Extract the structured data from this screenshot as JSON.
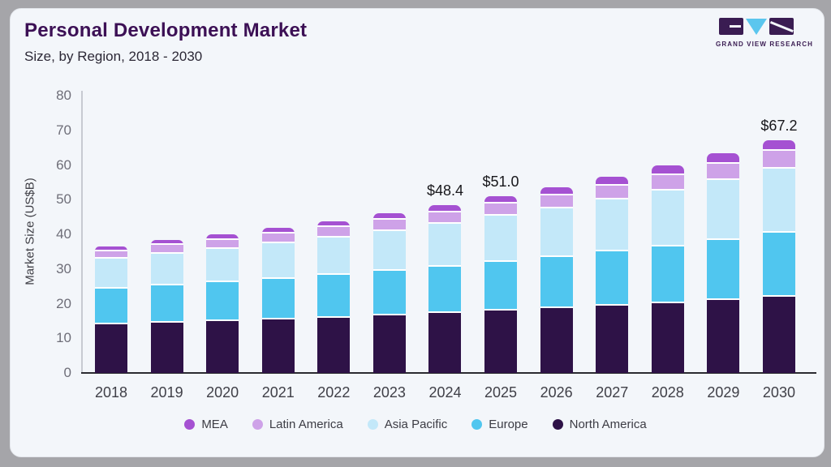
{
  "header": {
    "title": "Personal Development Market",
    "subtitle": "Size, by Region, 2018 - 2030"
  },
  "logo": {
    "name": "grand-view-research-logo",
    "text": "GRAND VIEW RESEARCH",
    "block_color": "#3a1c52",
    "triangle_color": "#5bc6ee"
  },
  "chart_data": {
    "type": "bar",
    "stacked": true,
    "title": "Personal Development Market Size, by Region, 2018 - 2030",
    "xlabel": "",
    "ylabel": "Market Size (US$B)",
    "ylim": [
      0,
      80
    ],
    "ytick_step": 10,
    "yticks": [
      0,
      10,
      20,
      30,
      40,
      50,
      60,
      70,
      80
    ],
    "grid": false,
    "legend_position": "bottom",
    "categories": [
      "2018",
      "2019",
      "2020",
      "2021",
      "2022",
      "2023",
      "2024",
      "2025",
      "2026",
      "2027",
      "2028",
      "2029",
      "2030"
    ],
    "series": [
      {
        "name": "North America",
        "color": "#2e1247",
        "values": [
          14.0,
          14.5,
          14.9,
          15.5,
          16.0,
          16.6,
          17.2,
          17.9,
          18.6,
          19.3,
          20.1,
          21.0,
          22.0
        ]
      },
      {
        "name": "Europe",
        "color": "#50c6ef",
        "values": [
          10.3,
          10.8,
          11.2,
          11.7,
          12.2,
          12.8,
          13.5,
          14.2,
          14.9,
          15.7,
          16.5,
          17.4,
          18.5
        ]
      },
      {
        "name": "Asia Pacific",
        "color": "#c3e8f9",
        "values": [
          8.7,
          9.2,
          9.8,
          10.3,
          10.9,
          11.6,
          12.4,
          13.2,
          14.0,
          15.0,
          16.1,
          17.2,
          18.4
        ]
      },
      {
        "name": "Latin America",
        "color": "#cea2e8",
        "values": [
          2.2,
          2.4,
          2.5,
          2.7,
          2.9,
          3.1,
          3.3,
          3.6,
          3.8,
          4.1,
          4.4,
          4.8,
          5.2
        ]
      },
      {
        "name": "MEA",
        "color": "#a551d2",
        "values": [
          1.4,
          1.5,
          1.6,
          1.7,
          1.8,
          1.9,
          2.0,
          2.1,
          2.3,
          2.5,
          2.7,
          2.9,
          3.1
        ]
      }
    ],
    "totals": [
      36.6,
      38.4,
      40.0,
      41.9,
      43.8,
      46.0,
      48.4,
      51.0,
      53.6,
      56.6,
      59.8,
      63.3,
      67.2
    ],
    "value_labels": [
      "",
      "",
      "",
      "",
      "",
      "",
      "$48.4",
      "$51.0",
      "",
      "",
      "",
      "",
      "$67.2"
    ],
    "legend": [
      {
        "label": "MEA",
        "color": "#a551d2"
      },
      {
        "label": "Latin America",
        "color": "#cea2e8"
      },
      {
        "label": "Asia Pacific",
        "color": "#c3e8f9"
      },
      {
        "label": "Europe",
        "color": "#50c6ef"
      },
      {
        "label": "North America",
        "color": "#2e1247"
      }
    ]
  }
}
